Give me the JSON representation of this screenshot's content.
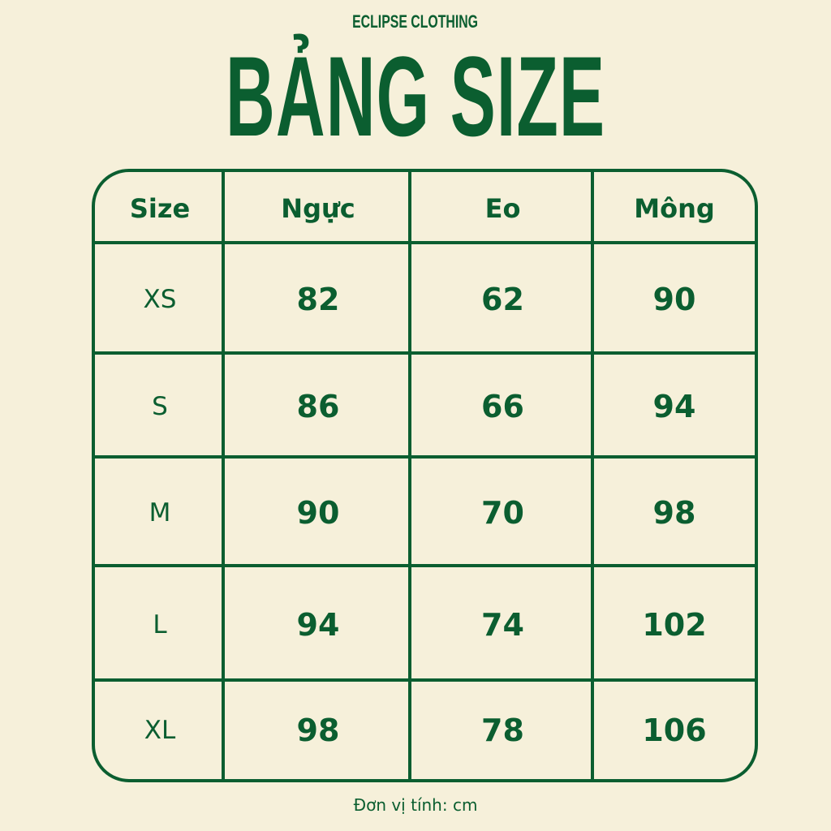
{
  "brand": "ECLIPSE CLOTHING",
  "title": "BẢNG SIZE",
  "colors": {
    "background": "#f6f0da",
    "accent": "#0b5e30"
  },
  "table": {
    "headers": [
      "Size",
      "Ngực",
      "Eo",
      "Mông"
    ],
    "rows": [
      [
        "XS",
        "82",
        "62",
        "90"
      ],
      [
        "S",
        "86",
        "66",
        "94"
      ],
      [
        "M",
        "90",
        "70",
        "98"
      ],
      [
        "L",
        "94",
        "74",
        "102"
      ],
      [
        "XL",
        "98",
        "78",
        "106"
      ]
    ]
  },
  "footer": "Đơn vị tính: cm"
}
